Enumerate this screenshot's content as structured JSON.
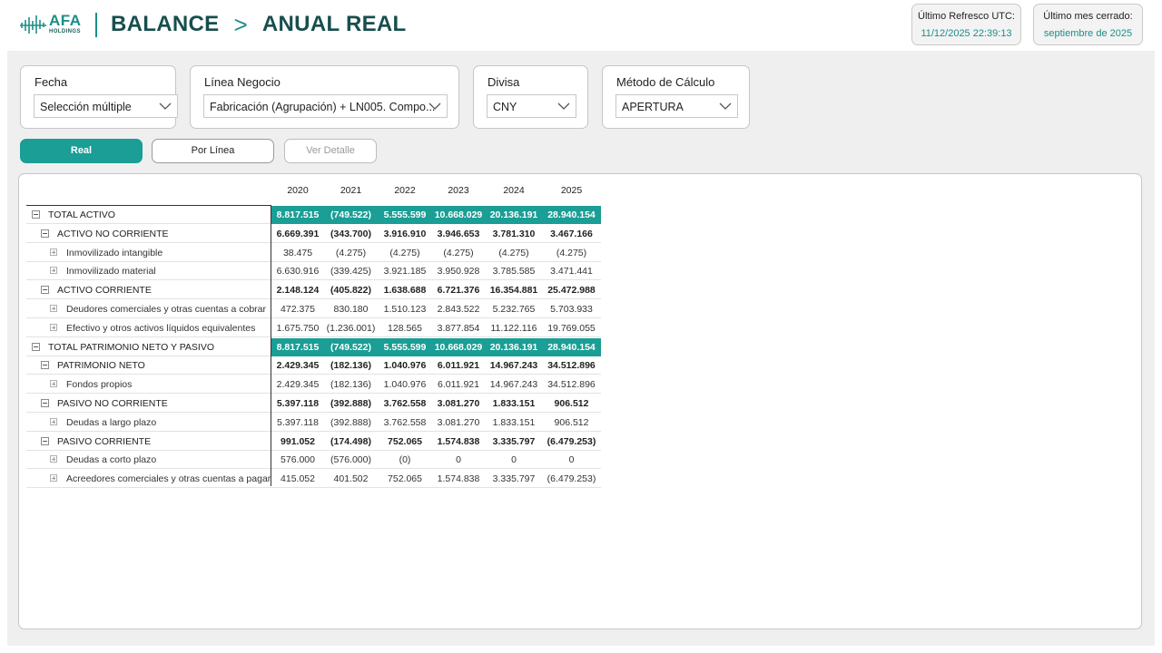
{
  "header": {
    "logo_main": "AFA",
    "logo_sub": "HOLDINGS",
    "title_left": "BALANCE",
    "title_sep": ">",
    "title_right": "ANUAL REAL",
    "refresh_label": "Último Refresco UTC:",
    "refresh_value": "11/12/2025 22:39:13",
    "closed_label": "Último mes cerrado:",
    "closed_value": "septiembre de 2025"
  },
  "filters": {
    "fecha": {
      "label": "Fecha",
      "value": "Selección múltiple"
    },
    "linea": {
      "label": "Línea Negocio",
      "value": "Fabricación (Agrupación) + LN005. Compo..."
    },
    "divisa": {
      "label": "Divisa",
      "value": "CNY"
    },
    "metodo": {
      "label": "Método de Cálculo",
      "value": "APERTURA"
    }
  },
  "buttons": {
    "real": "Real",
    "por_linea": "Por Línea",
    "ver_detalle": "Ver Detalle"
  },
  "colors": {
    "accent": "#1a9e95",
    "title": "#174e4d",
    "panel_bg": "#efefef"
  },
  "table": {
    "years": [
      "2020",
      "2021",
      "2022",
      "2023",
      "2024",
      "2025"
    ],
    "rows": [
      {
        "level": 0,
        "label": "TOTAL ACTIVO",
        "values": [
          "8.817.515",
          "(749.522)",
          "5.555.599",
          "10.668.029",
          "20.136.191",
          "28.940.154"
        ]
      },
      {
        "level": 1,
        "label": "ACTIVO NO CORRIENTE",
        "values": [
          "6.669.391",
          "(343.700)",
          "3.916.910",
          "3.946.653",
          "3.781.310",
          "3.467.166"
        ]
      },
      {
        "level": 2,
        "label": "Inmovilizado intangible",
        "values": [
          "38.475",
          "(4.275)",
          "(4.275)",
          "(4.275)",
          "(4.275)",
          "(4.275)"
        ]
      },
      {
        "level": 2,
        "label": "Inmovilizado material",
        "values": [
          "6.630.916",
          "(339.425)",
          "3.921.185",
          "3.950.928",
          "3.785.585",
          "3.471.441"
        ]
      },
      {
        "level": 1,
        "label": "ACTIVO CORRIENTE",
        "values": [
          "2.148.124",
          "(405.822)",
          "1.638.688",
          "6.721.376",
          "16.354.881",
          "25.472.988"
        ]
      },
      {
        "level": 2,
        "label": "Deudores comerciales y otras cuentas a cobrar",
        "values": [
          "472.375",
          "830.180",
          "1.510.123",
          "2.843.522",
          "5.232.765",
          "5.703.933"
        ]
      },
      {
        "level": 2,
        "label": "Efectivo y otros activos líquidos equivalentes",
        "values": [
          "1.675.750",
          "(1.236.001)",
          "128.565",
          "3.877.854",
          "11.122.116",
          "19.769.055"
        ]
      },
      {
        "level": 0,
        "label": "TOTAL PATRIMONIO NETO Y PASIVO",
        "values": [
          "8.817.515",
          "(749.522)",
          "5.555.599",
          "10.668.029",
          "20.136.191",
          "28.940.154"
        ]
      },
      {
        "level": 1,
        "label": "PATRIMONIO NETO",
        "values": [
          "2.429.345",
          "(182.136)",
          "1.040.976",
          "6.011.921",
          "14.967.243",
          "34.512.896"
        ]
      },
      {
        "level": 2,
        "label": "Fondos propios",
        "values": [
          "2.429.345",
          "(182.136)",
          "1.040.976",
          "6.011.921",
          "14.967.243",
          "34.512.896"
        ]
      },
      {
        "level": 1,
        "label": "PASIVO NO CORRIENTE",
        "values": [
          "5.397.118",
          "(392.888)",
          "3.762.558",
          "3.081.270",
          "1.833.151",
          "906.512"
        ]
      },
      {
        "level": 2,
        "label": "Deudas a largo plazo",
        "values": [
          "5.397.118",
          "(392.888)",
          "3.762.558",
          "3.081.270",
          "1.833.151",
          "906.512"
        ]
      },
      {
        "level": 1,
        "label": "PASIVO CORRIENTE",
        "values": [
          "991.052",
          "(174.498)",
          "752.065",
          "1.574.838",
          "3.335.797",
          "(6.479.253)"
        ]
      },
      {
        "level": 2,
        "label": "Deudas a corto plazo",
        "values": [
          "576.000",
          "(576.000)",
          "(0)",
          "0",
          "0",
          "0"
        ]
      },
      {
        "level": 2,
        "label": "Acreedores comerciales y otras cuentas a pagar",
        "values": [
          "415.052",
          "401.502",
          "752.065",
          "1.574.838",
          "3.335.797",
          "(6.479.253)"
        ]
      }
    ]
  }
}
